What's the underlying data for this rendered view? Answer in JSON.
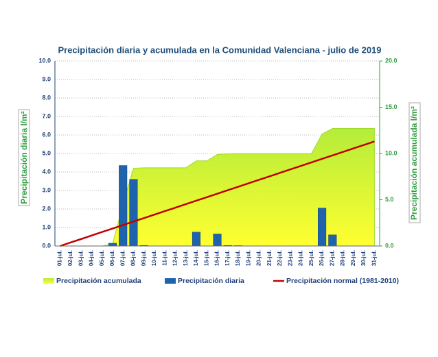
{
  "chart_data": {
    "type": "combo",
    "title": "Precipitación diaria y acumulada en la Comunidad Valenciana - julio de 2019",
    "ylabel": "Precipitación diaria l/m²",
    "y2label": "Precipitación acumulada l/m²",
    "categories": [
      "01-jul.",
      "02-jul.",
      "03-jul.",
      "04-jul.",
      "05-jul.",
      "06-jul.",
      "07-jul.",
      "08-jul.",
      "09-jul.",
      "10-jul.",
      "11-jul.",
      "12-jul.",
      "13-jul.",
      "14-jul.",
      "15-jul.",
      "16-jul.",
      "17-jul.",
      "18-jul.",
      "19-jul.",
      "20-jul.",
      "21-jul.",
      "22-jul.",
      "23-jul.",
      "24-jul.",
      "25-jul.",
      "26-jul.",
      "27-jul.",
      "28-jul.",
      "29-jul.",
      "30-jul.",
      "31-jul."
    ],
    "ylim": [
      0,
      10
    ],
    "yticks": [
      {
        "value": 0,
        "label": "0.0"
      },
      {
        "value": 1,
        "label": "1.0"
      },
      {
        "value": 2,
        "label": "2.0"
      },
      {
        "value": 3,
        "label": "3.0"
      },
      {
        "value": 4,
        "label": "4.0"
      },
      {
        "value": 5,
        "label": "5.0"
      },
      {
        "value": 6,
        "label": "6.0"
      },
      {
        "value": 7,
        "label": "7.0"
      },
      {
        "value": 8,
        "label": "8.0"
      },
      {
        "value": 9,
        "label": "9.0"
      },
      {
        "value": 10,
        "label": "10.0"
      }
    ],
    "y2lim": [
      0,
      20
    ],
    "y2ticks": [
      {
        "value": 0,
        "label": "0.0"
      },
      {
        "value": 5,
        "label": "5.0"
      },
      {
        "value": 10,
        "label": "10.0"
      },
      {
        "value": 15,
        "label": "15.0"
      },
      {
        "value": 20,
        "label": "20.0"
      }
    ],
    "grid": true,
    "series": [
      {
        "name": "Precipitación acumulada",
        "kind": "area",
        "axis": "y2",
        "color": "#c6f53a",
        "values": [
          0,
          0,
          0,
          0,
          0,
          0.2,
          4.5,
          8.4,
          8.45,
          8.45,
          8.45,
          8.45,
          8.45,
          9.2,
          9.2,
          9.9,
          9.95,
          10,
          10,
          10,
          10,
          10,
          10,
          10,
          10,
          12.1,
          12.7,
          12.7,
          12.7,
          12.7,
          12.7
        ]
      },
      {
        "name": "Precipitación diaria",
        "kind": "bar",
        "axis": "y",
        "color": "#1f63ad",
        "values": [
          0,
          0,
          0,
          0,
          0,
          0.15,
          4.35,
          3.6,
          0.03,
          0,
          0,
          0,
          0,
          0.75,
          0,
          0.65,
          0.03,
          0.02,
          0,
          0,
          0,
          0,
          0,
          0,
          0,
          2.05,
          0.6,
          0,
          0,
          0,
          0
        ]
      },
      {
        "name": "Precipitación normal (1981-2010)",
        "kind": "line",
        "axis": "y2",
        "color": "#c00000",
        "values": [
          0,
          0.38,
          0.75,
          1.13,
          1.51,
          1.88,
          2.26,
          2.64,
          3.01,
          3.39,
          3.77,
          4.14,
          4.52,
          4.9,
          5.27,
          5.65,
          6.03,
          6.4,
          6.78,
          7.16,
          7.53,
          7.91,
          8.29,
          8.66,
          9.04,
          9.42,
          9.79,
          10.17,
          10.55,
          10.92,
          11.3
        ]
      }
    ]
  }
}
